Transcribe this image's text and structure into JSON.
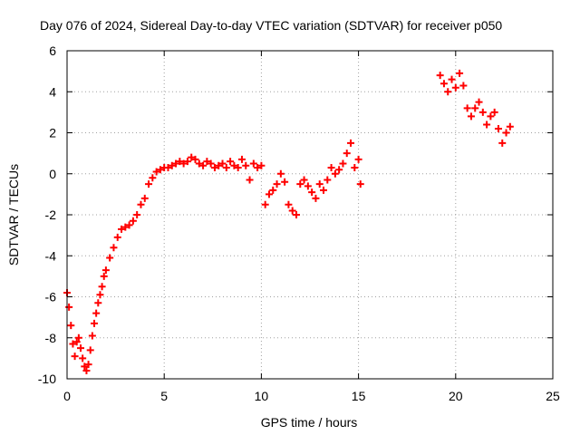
{
  "chart_data": {
    "type": "scatter",
    "title": "Day 076 of 2024, Sidereal Day-to-day VTEC variation (SDTVAR) for receiver p050",
    "xlabel": "GPS time / hours",
    "ylabel": "SDTVAR / TECUs",
    "xlim": [
      0,
      25
    ],
    "ylim": [
      -10,
      6
    ],
    "xticks": [
      0,
      5,
      10,
      15,
      20,
      25
    ],
    "yticks": [
      -10,
      -8,
      -6,
      -4,
      -2,
      0,
      2,
      4,
      6
    ],
    "xtick_labels": [
      "0",
      "5",
      "10",
      "15",
      "20",
      "25"
    ],
    "ytick_labels": [
      "-10",
      "-8",
      "-6",
      "-4",
      "-2",
      "0",
      "2",
      "4",
      "6"
    ],
    "grid": true,
    "marker": "+",
    "color": "#ff0000",
    "series": [
      {
        "name": "p050 SDTVAR",
        "x": [
          0.0,
          0.1,
          0.2,
          0.3,
          0.4,
          0.5,
          0.6,
          0.7,
          0.8,
          0.9,
          1.0,
          1.1,
          1.2,
          1.3,
          1.4,
          1.5,
          1.6,
          1.7,
          1.8,
          1.9,
          2.0,
          2.2,
          2.4,
          2.6,
          2.8,
          3.0,
          3.2,
          3.4,
          3.6,
          3.8,
          4.0,
          4.2,
          4.4,
          4.6,
          4.8,
          5.0,
          5.2,
          5.4,
          5.6,
          5.8,
          6.0,
          6.2,
          6.4,
          6.6,
          6.8,
          7.0,
          7.2,
          7.4,
          7.6,
          7.8,
          8.0,
          8.2,
          8.4,
          8.6,
          8.8,
          9.0,
          9.2,
          9.4,
          9.6,
          9.8,
          10.0,
          10.2,
          10.4,
          10.6,
          10.8,
          11.0,
          11.2,
          11.4,
          11.6,
          11.8,
          12.0,
          12.2,
          12.4,
          12.6,
          12.8,
          13.0,
          13.2,
          13.4,
          13.6,
          13.8,
          14.0,
          14.2,
          14.4,
          14.6,
          14.8,
          15.0,
          15.1,
          19.2,
          19.4,
          19.6,
          19.8,
          20.0,
          20.2,
          20.4,
          20.6,
          20.8,
          21.0,
          21.2,
          21.4,
          21.6,
          21.8,
          22.0,
          22.2,
          22.4,
          22.6,
          22.8
        ],
        "y": [
          -5.8,
          -6.5,
          -7.4,
          -8.3,
          -8.9,
          -8.2,
          -8.0,
          -8.5,
          -9.0,
          -9.4,
          -9.6,
          -9.3,
          -8.6,
          -7.9,
          -7.3,
          -6.8,
          -6.3,
          -5.9,
          -5.5,
          -5.0,
          -4.7,
          -4.1,
          -3.6,
          -3.1,
          -2.7,
          -2.6,
          -2.5,
          -2.3,
          -2.0,
          -1.5,
          -1.2,
          -0.5,
          -0.2,
          0.1,
          0.2,
          0.3,
          0.3,
          0.4,
          0.5,
          0.6,
          0.5,
          0.6,
          0.8,
          0.7,
          0.5,
          0.4,
          0.6,
          0.5,
          0.3,
          0.4,
          0.5,
          0.3,
          0.6,
          0.4,
          0.3,
          0.7,
          0.4,
          -0.3,
          0.5,
          0.3,
          0.4,
          -1.5,
          -1.0,
          -0.8,
          -0.5,
          0.0,
          -0.4,
          -1.5,
          -1.8,
          -2.0,
          -0.5,
          -0.3,
          -0.6,
          -0.9,
          -1.2,
          -0.5,
          -0.8,
          -0.3,
          0.3,
          0.0,
          0.2,
          0.5,
          1.0,
          1.5,
          0.3,
          0.7,
          -0.5,
          4.8,
          4.4,
          4.0,
          4.6,
          4.2,
          4.9,
          4.3,
          3.2,
          2.8,
          3.2,
          3.5,
          3.0,
          2.4,
          2.8,
          3.0,
          2.2,
          1.5,
          2.0,
          2.3
        ]
      }
    ]
  }
}
